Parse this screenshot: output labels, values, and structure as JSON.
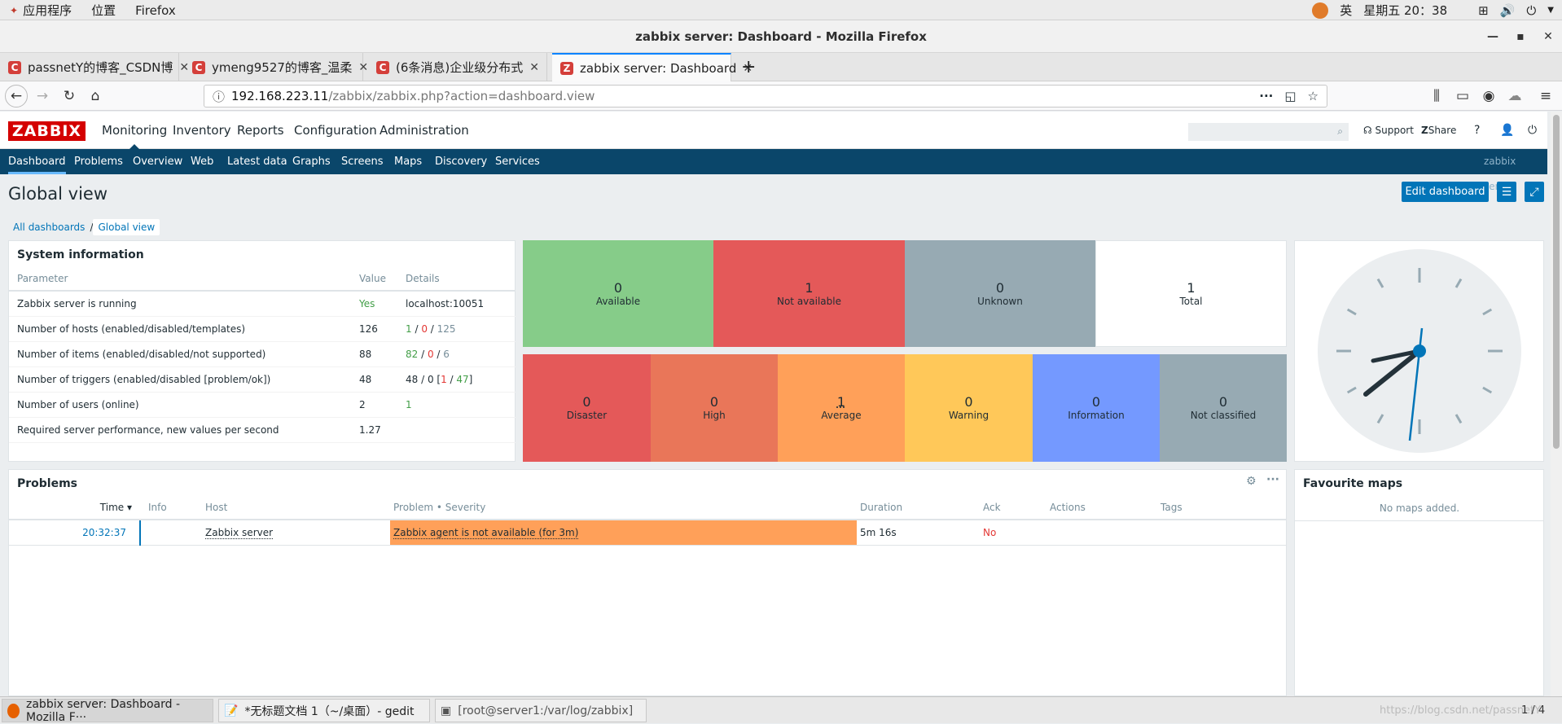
{
  "system_bar": {
    "apps": "应用程序",
    "places": "位置",
    "firefox": "Firefox",
    "input_method": "英",
    "clock": "星期五 20：38"
  },
  "window": {
    "title": "zabbix server: Dashboard - Mozilla Firefox"
  },
  "tabs": [
    {
      "label": "passnetY的博客_CSDN博"
    },
    {
      "label": "ymeng9527的博客_温柔"
    },
    {
      "label": "(6条消息)企业级分布式"
    },
    {
      "label": "zabbix server: Dashboard"
    }
  ],
  "url": {
    "host": "192.168.223.11",
    "path": "/zabbix/zabbix.php?action=dashboard.view"
  },
  "zabbix": {
    "logo": "ZABBIX",
    "menu": [
      "Monitoring",
      "Inventory",
      "Reports",
      "Configuration",
      "Administration"
    ],
    "support": "Support",
    "share": "Share",
    "help": "?",
    "submenu": [
      "Dashboard",
      "Problems",
      "Overview",
      "Web",
      "Latest data",
      "Graphs",
      "Screens",
      "Maps",
      "Discovery",
      "Services"
    ],
    "server_name": "zabbix server"
  },
  "page": {
    "title": "Global view",
    "edit_dashboard": "Edit dashboard",
    "breadcrumb_all": "All dashboards",
    "breadcrumb_sep": "/",
    "breadcrumb_current": "Global view"
  },
  "system_info": {
    "title": "System information",
    "headers": [
      "Parameter",
      "Value",
      "Details"
    ],
    "rows": [
      {
        "param": "Zabbix server is running",
        "value": "Yes",
        "details": "localhost:10051"
      },
      {
        "param": "Number of hosts (enabled/disabled/templates)",
        "value": "126",
        "d1": "1",
        "s1": " / ",
        "d2": "0",
        "s2": " / ",
        "d3": "125"
      },
      {
        "param": "Number of items (enabled/disabled/not supported)",
        "value": "88",
        "d1": "82",
        "s1": " / ",
        "d2": "0",
        "s2": " / ",
        "d3": "6"
      },
      {
        "param": "Number of triggers (enabled/disabled [problem/ok])",
        "value": "48",
        "d0": "48 / 0 [",
        "d1": "1",
        "s1": " / ",
        "d2": "47",
        "s2": "]"
      },
      {
        "param": "Number of users (online)",
        "value": "2",
        "details": "1"
      },
      {
        "param": "Required server performance, new values per second",
        "value": "1.27",
        "details": ""
      }
    ]
  },
  "host_availability": [
    {
      "count": "0",
      "label": "Available",
      "color": "#86cc89"
    },
    {
      "count": "1",
      "label": "Not available",
      "color": "#e45959"
    },
    {
      "count": "0",
      "label": "Unknown",
      "color": "#97aab3"
    },
    {
      "count": "1",
      "label": "Total",
      "color": "#ffffff"
    }
  ],
  "problems_by_severity": [
    {
      "count": "0",
      "label": "Disaster",
      "color": "#e45959"
    },
    {
      "count": "0",
      "label": "High",
      "color": "#e97659"
    },
    {
      "count": "1",
      "label": "Average",
      "color": "#ffa059"
    },
    {
      "count": "0",
      "label": "Warning",
      "color": "#ffc859"
    },
    {
      "count": "0",
      "label": "Information",
      "color": "#7499ff"
    },
    {
      "count": "0",
      "label": "Not classified",
      "color": "#97aab3"
    }
  ],
  "problems": {
    "title": "Problems",
    "headers": [
      "Time ▾",
      "Info",
      "Host",
      "Problem • Severity",
      "Duration",
      "Ack",
      "Actions",
      "Tags"
    ],
    "rows": [
      {
        "time": "20:32:37",
        "info": "",
        "host": "Zabbix server",
        "problem": "Zabbix agent is not available (for 3m)",
        "duration": "5m 16s",
        "ack": "No",
        "actions": "",
        "tags": ""
      }
    ]
  },
  "favourite_maps": {
    "title": "Favourite maps",
    "empty": "No maps added."
  },
  "taskbar": [
    {
      "label": "zabbix server: Dashboard - Mozilla F···"
    },
    {
      "label": "*无标题文档 1（~/桌面）- gedit"
    },
    {
      "label": "[root@server1:/var/log/zabbix]"
    }
  ],
  "workspace": "1 / 4",
  "watermark": "https://blog.csdn.net/passnetY"
}
